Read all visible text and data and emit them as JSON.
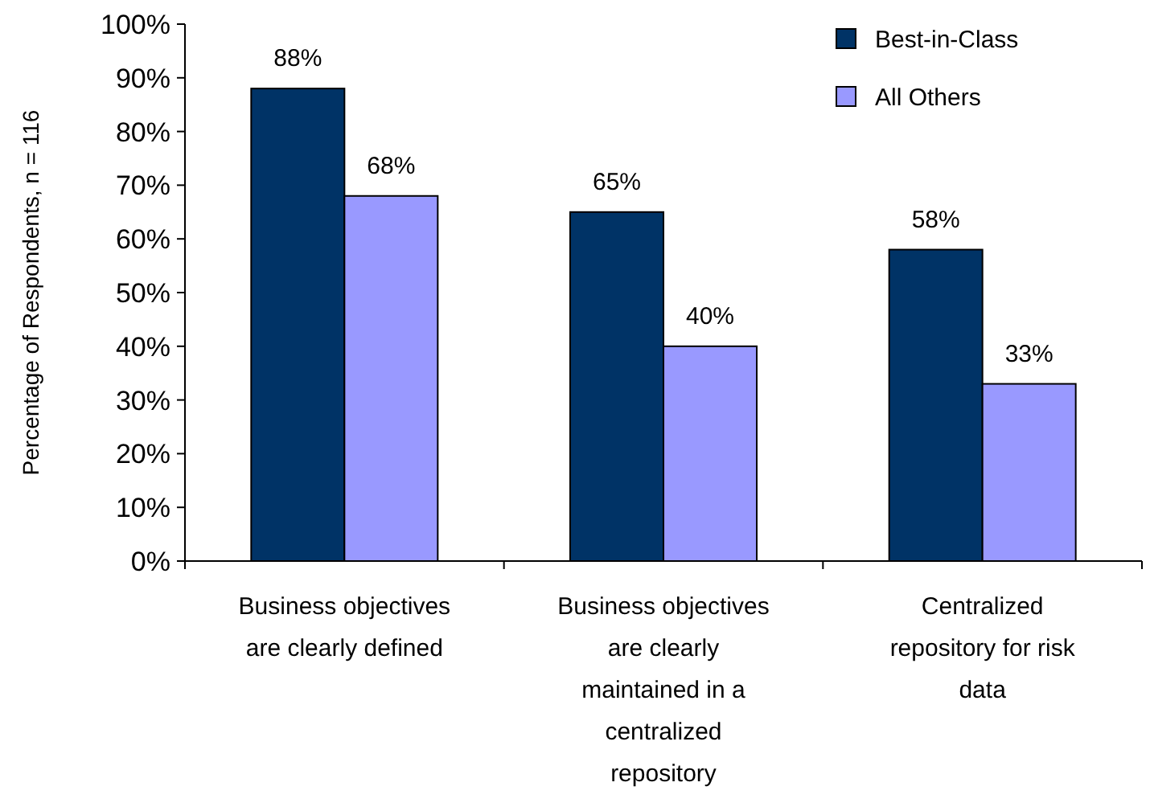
{
  "chart_data": {
    "type": "bar",
    "ylabel": "Percentage of Respondents, n = 116",
    "categories": [
      "Business objectives are clearly defined",
      "Business objectives are clearly maintained in a centralized repository",
      "Centralized repository for risk data"
    ],
    "series": [
      {
        "name": "Best-in-Class",
        "color": "#003366",
        "values": [
          88,
          65,
          58
        ]
      },
      {
        "name": "All Others",
        "color": "#9999ff",
        "values": [
          68,
          40,
          33
        ]
      }
    ],
    "ylim": [
      0,
      100
    ],
    "yticks": [
      {
        "value": 0,
        "label": "0%"
      },
      {
        "value": 10,
        "label": "10%"
      },
      {
        "value": 20,
        "label": "20%"
      },
      {
        "value": 30,
        "label": "30%"
      },
      {
        "value": 40,
        "label": "40%"
      },
      {
        "value": 50,
        "label": "50%"
      },
      {
        "value": 60,
        "label": "60%"
      },
      {
        "value": 70,
        "label": "70%"
      },
      {
        "value": 80,
        "label": "80%"
      },
      {
        "value": 90,
        "label": "90%"
      },
      {
        "value": 100,
        "label": "100%"
      }
    ],
    "value_labels": [
      [
        "88%",
        "65%",
        "58%"
      ],
      [
        "68%",
        "40%",
        "33%"
      ]
    ],
    "legend": "top right",
    "grid": false
  }
}
